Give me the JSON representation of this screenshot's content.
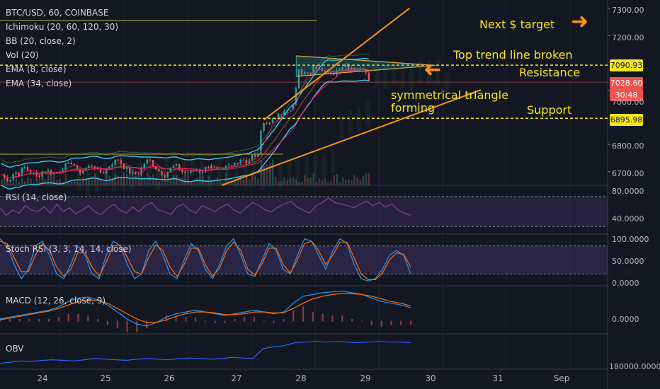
{
  "header": {
    "symbol_line": "BTC/USD, 60, COINBASE",
    "indicators": [
      "Ichimoku (20, 60, 120, 30)",
      "BB (20, close, 2)",
      "Vol (20)",
      "EMA (8, close)",
      "EMA (34, close)"
    ]
  },
  "annotations": {
    "next_target": "Next $ target",
    "top_trend": "Top trend line broken",
    "resistance": "Resistance",
    "triangle_1": "symmetrical triangle",
    "triangle_2": "forming",
    "support": "Support"
  },
  "price_tags": {
    "resistance": "7090.93",
    "current": "7028.60",
    "countdown": "30:48",
    "support": "6895.98"
  },
  "colors": {
    "background": "#131722",
    "annotation": "#f7e51f",
    "arrow": "#f7931a",
    "trendline": "#f7931a",
    "bb": "#3cc8f0",
    "rsi": "#8b3f9a",
    "up": "#26a69a",
    "down": "#ef5350"
  },
  "chart_data": [
    {
      "type": "candlestick",
      "pane": "price",
      "ylim": [
        6650,
        7330
      ],
      "y_ticks": [
        "7300.00",
        "7200.00",
        "7100.00",
        "7000.00",
        "6800.00",
        "6700.00"
      ],
      "x_ticks": [
        "24",
        "25",
        "26",
        "27",
        "28",
        "29",
        "30",
        "31",
        "Sep"
      ],
      "levels": {
        "resistance": 7090.93,
        "support": 6895.98,
        "last": 7028.6
      },
      "close_path": [
        {
          "t": 0.0,
          "p": 6690
        },
        {
          "t": 0.06,
          "p": 6675
        },
        {
          "t": 0.12,
          "p": 6670
        },
        {
          "t": 0.2,
          "p": 6700
        },
        {
          "t": 0.28,
          "p": 6690
        },
        {
          "t": 0.34,
          "p": 6720
        },
        {
          "t": 0.42,
          "p": 6705
        },
        {
          "t": 0.5,
          "p": 6690
        },
        {
          "t": 0.56,
          "p": 6680
        },
        {
          "t": 0.62,
          "p": 6700
        },
        {
          "t": 0.68,
          "p": 6705
        },
        {
          "t": 0.74,
          "p": 6700
        },
        {
          "t": 0.8,
          "p": 6690
        },
        {
          "t": 0.86,
          "p": 6700
        },
        {
          "t": 0.92,
          "p": 6710
        },
        {
          "t": 0.98,
          "p": 6720
        },
        {
          "t": 1.04,
          "p": 6725
        },
        {
          "t": 1.1,
          "p": 6740
        },
        {
          "t": 1.16,
          "p": 6700
        },
        {
          "t": 1.24,
          "p": 6700
        },
        {
          "t": 1.32,
          "p": 6715
        },
        {
          "t": 1.4,
          "p": 6725
        },
        {
          "t": 1.48,
          "p": 6705
        },
        {
          "t": 1.56,
          "p": 6695
        },
        {
          "t": 1.64,
          "p": 6715
        },
        {
          "t": 1.72,
          "p": 6735
        },
        {
          "t": 1.8,
          "p": 6745
        },
        {
          "t": 1.88,
          "p": 6720
        },
        {
          "t": 1.96,
          "p": 6700
        },
        {
          "t": 2.04,
          "p": 6690
        },
        {
          "t": 2.12,
          "p": 6695
        },
        {
          "t": 2.2,
          "p": 6730
        },
        {
          "t": 2.28,
          "p": 6745
        },
        {
          "t": 2.36,
          "p": 6720
        },
        {
          "t": 2.44,
          "p": 6700
        },
        {
          "t": 2.52,
          "p": 6690
        },
        {
          "t": 2.6,
          "p": 6710
        },
        {
          "t": 2.68,
          "p": 6725
        },
        {
          "t": 2.76,
          "p": 6705
        },
        {
          "t": 2.84,
          "p": 6695
        },
        {
          "t": 2.92,
          "p": 6700
        },
        {
          "t": 3.0,
          "p": 6710
        },
        {
          "t": 3.08,
          "p": 6700
        },
        {
          "t": 3.16,
          "p": 6715
        },
        {
          "t": 3.24,
          "p": 6725
        },
        {
          "t": 3.32,
          "p": 6705
        },
        {
          "t": 3.4,
          "p": 6700
        },
        {
          "t": 3.48,
          "p": 6720
        },
        {
          "t": 3.56,
          "p": 6720
        },
        {
          "t": 3.64,
          "p": 6740
        },
        {
          "t": 3.72,
          "p": 6750
        },
        {
          "t": 3.8,
          "p": 6730
        },
        {
          "t": 3.86,
          "p": 6760
        },
        {
          "t": 3.92,
          "p": 6750
        },
        {
          "t": 3.98,
          "p": 6780
        },
        {
          "t": 4.02,
          "p": 6880
        },
        {
          "t": 4.06,
          "p": 6890
        },
        {
          "t": 4.12,
          "p": 6870
        },
        {
          "t": 4.18,
          "p": 6895
        },
        {
          "t": 4.24,
          "p": 6900
        },
        {
          "t": 4.3,
          "p": 6905
        },
        {
          "t": 4.36,
          "p": 6915
        },
        {
          "t": 4.42,
          "p": 6925
        },
        {
          "t": 4.48,
          "p": 6930
        },
        {
          "t": 4.54,
          "p": 6990
        },
        {
          "t": 4.58,
          "p": 7070
        },
        {
          "t": 4.64,
          "p": 7060
        },
        {
          "t": 4.7,
          "p": 7080
        },
        {
          "t": 4.76,
          "p": 7050
        },
        {
          "t": 4.82,
          "p": 7090
        },
        {
          "t": 4.88,
          "p": 7070
        },
        {
          "t": 4.94,
          "p": 7080
        },
        {
          "t": 5.0,
          "p": 7060
        },
        {
          "t": 5.06,
          "p": 7075
        },
        {
          "t": 5.12,
          "p": 7060
        },
        {
          "t": 5.18,
          "p": 7080
        },
        {
          "t": 5.24,
          "p": 7070
        },
        {
          "t": 5.3,
          "p": 7090
        },
        {
          "t": 5.36,
          "p": 7075
        },
        {
          "t": 5.42,
          "p": 7085
        },
        {
          "t": 5.48,
          "p": 7075
        },
        {
          "t": 5.54,
          "p": 7080
        },
        {
          "t": 5.6,
          "p": 7085
        },
        {
          "t": 5.66,
          "p": 7040
        },
        {
          "t": 5.7,
          "p": 7028.6
        }
      ],
      "trendlines": [
        {
          "t1": 4.05,
          "p1": 6890,
          "t2": 6.3,
          "p2": 7300
        },
        {
          "t1": 3.4,
          "p1": 6650,
          "t2": 7.4,
          "p2": 7000
        },
        {
          "t1": 4.55,
          "p1": 7125,
          "t2": 6.7,
          "p2": 7090
        },
        {
          "t1": 4.55,
          "p1": 7050,
          "t2": 6.7,
          "p2": 7090
        }
      ]
    },
    {
      "type": "line",
      "pane": "rsi",
      "name": "RSI (14, close)",
      "ylim": [
        20,
        85
      ],
      "y_ticks": [
        "80.0000",
        "40.0000"
      ],
      "bands": [
        70,
        30
      ],
      "values": [
        55,
        45,
        52,
        48,
        58,
        52,
        50,
        56,
        48,
        60,
        50,
        55,
        47,
        52,
        58,
        50,
        46,
        54,
        60,
        52,
        48,
        56,
        50,
        58,
        62,
        52,
        50,
        46,
        56,
        60,
        52,
        48,
        58,
        54,
        50,
        56,
        60,
        52,
        48,
        55,
        62,
        58,
        52,
        50,
        56,
        60,
        64,
        56,
        52,
        48,
        58,
        62,
        68,
        62,
        60,
        58,
        55,
        60,
        64,
        58,
        62,
        56,
        60,
        52,
        48,
        45
      ]
    },
    {
      "type": "line",
      "pane": "stoch",
      "name": "Stoch RSI (3, 3, 14, 14, close)",
      "ylim": [
        -5,
        105
      ],
      "y_ticks": [
        "100.0000",
        "50.0000",
        "0.0000"
      ],
      "bands": [
        80,
        20
      ],
      "k": [
        95,
        80,
        40,
        10,
        30,
        80,
        90,
        60,
        20,
        10,
        40,
        80,
        60,
        20,
        10,
        60,
        90,
        80,
        40,
        10,
        20,
        70,
        90,
        60,
        20,
        10,
        50,
        85,
        70,
        30,
        10,
        40,
        80,
        95,
        60,
        20,
        15,
        50,
        85,
        70,
        30,
        20,
        60,
        95,
        90,
        60,
        30,
        70,
        95,
        85,
        40,
        10,
        5,
        10,
        30,
        60,
        70,
        60,
        20
      ],
      "d": [
        90,
        85,
        55,
        25,
        25,
        60,
        85,
        70,
        35,
        15,
        30,
        65,
        65,
        35,
        15,
        45,
        80,
        82,
        55,
        25,
        20,
        55,
        82,
        70,
        35,
        15,
        40,
        75,
        75,
        40,
        15,
        32,
        70,
        88,
        70,
        30,
        18,
        42,
        75,
        75,
        40,
        22,
        50,
        85,
        90,
        70,
        40,
        60,
        88,
        88,
        55,
        20,
        8,
        8,
        22,
        50,
        65,
        62,
        35
      ]
    },
    {
      "type": "line",
      "pane": "macd",
      "name": "MACD (12, 26, close, 9)",
      "ylim": [
        -15,
        40
      ],
      "y_ticks": [
        "0.0000"
      ],
      "macd": [
        2,
        4,
        6,
        8,
        10,
        12,
        16,
        22,
        26,
        27,
        24,
        18,
        10,
        2,
        -4,
        -6,
        -2,
        4,
        8,
        10,
        12,
        10,
        8,
        6,
        8,
        10,
        12,
        10,
        8,
        10,
        20,
        28,
        30,
        32,
        33,
        34,
        32,
        30,
        26,
        22,
        20,
        18,
        15
      ],
      "signal": [
        1,
        3,
        5,
        7,
        9,
        11,
        14,
        18,
        22,
        24,
        23,
        20,
        14,
        8,
        2,
        -2,
        -2,
        1,
        5,
        8,
        10,
        10,
        9,
        7,
        7,
        8,
        10,
        10,
        9,
        9,
        14,
        20,
        25,
        28,
        30,
        31,
        31,
        30,
        28,
        25,
        22,
        20,
        17
      ]
    },
    {
      "type": "line",
      "pane": "obv",
      "name": "OBV",
      "y_ticks": [
        "180000.0000"
      ],
      "values": [
        10,
        12,
        14,
        13,
        15,
        16,
        15,
        14,
        16,
        18,
        17,
        16,
        15,
        17,
        18,
        17,
        16,
        18,
        19,
        18,
        17,
        18,
        20,
        19,
        18,
        35,
        38,
        40,
        45,
        46,
        47,
        46,
        47,
        46,
        45,
        46,
        47,
        46,
        46,
        45
      ]
    }
  ]
}
